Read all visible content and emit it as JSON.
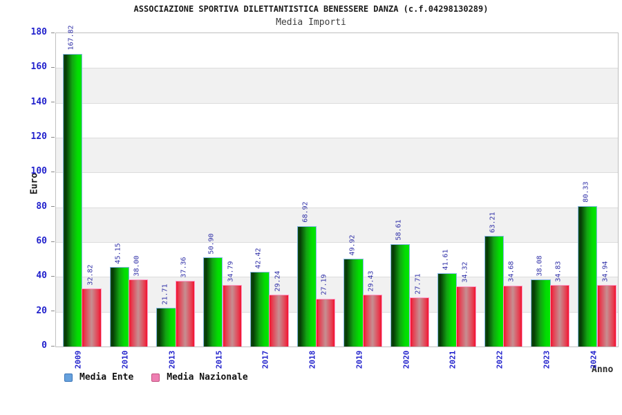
{
  "chart_data": {
    "type": "bar",
    "title": "ASSOCIAZIONE SPORTIVA DILETTANTISTICA BENESSERE DANZA (c.f.04298130289)",
    "subtitle": "Media Importi",
    "xlabel": "Anno",
    "ylabel": "Euro",
    "ylim": [
      0,
      180
    ],
    "ytick_step": 20,
    "yticks": [
      0,
      20,
      40,
      60,
      80,
      100,
      120,
      140,
      160,
      180
    ],
    "categories": [
      "2009",
      "2010",
      "2013",
      "2015",
      "2017",
      "2018",
      "2019",
      "2020",
      "2021",
      "2022",
      "2023",
      "2024"
    ],
    "series": [
      {
        "name": "Media Ente",
        "values": [
          167.82,
          45.15,
          21.71,
          50.9,
          42.42,
          68.92,
          49.92,
          58.61,
          41.61,
          63.21,
          38.08,
          80.33
        ],
        "bar_style": "bar-ente",
        "gradient_stops": [
          "#114b11 0%",
          "#063a06 12%",
          "#12a412 48%",
          "#02dd02 78%",
          "#00e600 100%"
        ],
        "outline_color": "#85b6e8",
        "legend_fill": "#66a1dd",
        "legend_border": "#3a74b8"
      },
      {
        "name": "Media Nazionale",
        "values": [
          32.82,
          38.0,
          37.36,
          34.79,
          29.24,
          27.19,
          29.43,
          27.71,
          34.32,
          34.68,
          34.83,
          34.94
        ],
        "bar_style": "bar-naz",
        "gradient_stops": [
          "#f2112e 0%",
          "#e73c4f 14%",
          "#c68f92 50%",
          "#e73c4f 86%",
          "#f2112e 100%"
        ],
        "outline_color": "#ff9bc8",
        "legend_fill": "#ee7fb2",
        "legend_border": "#c2507f"
      }
    ],
    "value_label_color": "#3232a8",
    "axis_tick_color": "#2222cc",
    "band_colors": [
      "#ffffff",
      "#f1f1f1"
    ],
    "grid": "horizontal-bands",
    "legend_position": "bottom-left",
    "value_label_decimals": 2
  }
}
